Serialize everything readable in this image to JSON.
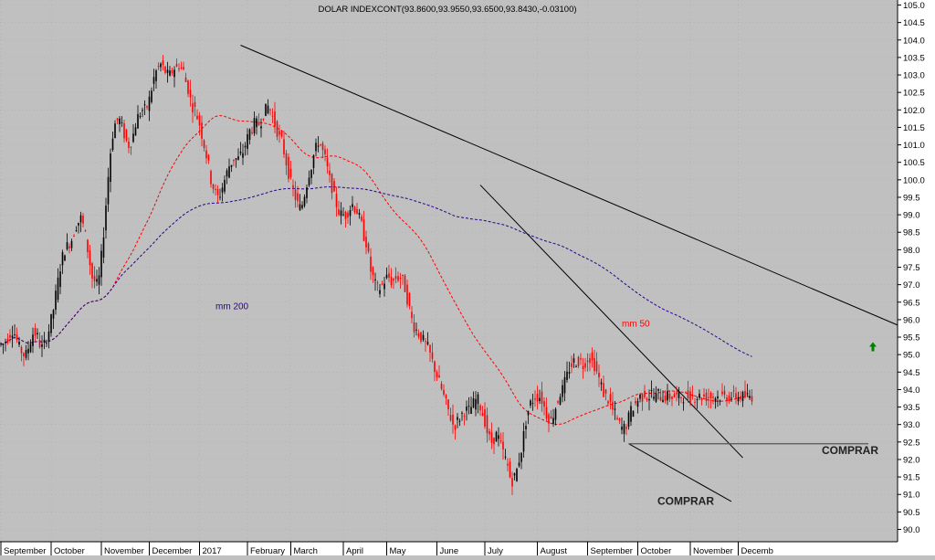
{
  "chart_data": {
    "type": "candlestick",
    "title": "DOLAR INDEXCONT(93.8600,93.9550,93.6500,93.8430,-0.03100)",
    "ylim": [
      89.8,
      105.3
    ],
    "y_ticks": [
      90.0,
      90.5,
      91.0,
      91.5,
      92.0,
      92.5,
      93.0,
      93.5,
      94.0,
      94.5,
      95.0,
      95.5,
      96.0,
      96.5,
      97.0,
      97.5,
      98.0,
      98.5,
      99.0,
      99.5,
      100.0,
      100.5,
      101.0,
      101.5,
      102.0,
      102.5,
      103.0,
      103.5,
      104.0,
      104.5,
      105.0
    ],
    "x_labels": [
      "September",
      "October",
      "November",
      "December",
      "2017",
      "February",
      "March",
      "April",
      "May",
      "June",
      "July",
      "August",
      "September",
      "October",
      "November",
      "Decemb"
    ],
    "month_index": [
      0,
      22,
      44,
      65,
      87,
      108,
      127,
      150,
      169,
      191,
      212,
      235,
      257,
      279,
      302,
      323
    ],
    "close": [
      95.3,
      95.3,
      95.4,
      95.5,
      95.6,
      95.7,
      95.6,
      95.4,
      95.2,
      95.1,
      95.0,
      95.0,
      95.2,
      95.4,
      95.6,
      95.6,
      95.5,
      95.3,
      95.2,
      95.3,
      95.5,
      95.7,
      96.0,
      96.3,
      96.7,
      97.1,
      97.5,
      97.8,
      98.0,
      98.1,
      98.2,
      98.3,
      98.5,
      98.7,
      98.8,
      98.9,
      98.7,
      98.4,
      98.0,
      97.6,
      97.2,
      97.1,
      97.0,
      97.2,
      97.8,
      98.5,
      99.3,
      100.1,
      100.8,
      101.3,
      101.6,
      101.7,
      101.7,
      101.5,
      101.3,
      101.1,
      101.0,
      101.1,
      101.3,
      101.6,
      101.8,
      101.9,
      102.0,
      102.0,
      102.1,
      102.3,
      102.6,
      102.9,
      103.1,
      103.2,
      103.3,
      103.2,
      103.1,
      103.0,
      103.0,
      103.1,
      103.2,
      103.2,
      103.3,
      103.2,
      103.1,
      102.8,
      102.6,
      102.3,
      102.1,
      102.0,
      101.8,
      101.6,
      101.3,
      101.0,
      100.7,
      100.4,
      100.0,
      99.8,
      99.6,
      99.5,
      99.6,
      99.8,
      100.0,
      100.2,
      100.4,
      100.5,
      100.6,
      100.6,
      100.6,
      100.7,
      100.8,
      101.0,
      101.2,
      101.4,
      101.5,
      101.6,
      101.6,
      101.6,
      101.7,
      101.9,
      102.0,
      102.1,
      102.0,
      101.8,
      101.6,
      101.4,
      101.2,
      101.1,
      100.8,
      100.5,
      100.2,
      99.9,
      99.7,
      99.5,
      99.3,
      99.2,
      99.3,
      99.6,
      99.9,
      100.2,
      100.4,
      100.7,
      100.9,
      101.1,
      101.0,
      100.8,
      100.6,
      100.3,
      100.0,
      99.8,
      99.5,
      99.3,
      99.1,
      99.0,
      99.0,
      99.0,
      99.1,
      99.2,
      99.3,
      99.2,
      99.1,
      98.9,
      98.7,
      98.4,
      98.2,
      97.8,
      97.4,
      97.2,
      97.0,
      96.9,
      96.9,
      97.0,
      97.1,
      97.2,
      97.2,
      97.1,
      97.1,
      97.2,
      97.2,
      97.2,
      97.1,
      96.9,
      96.6,
      96.3,
      96.0,
      95.8,
      95.7,
      95.6,
      95.5,
      95.4,
      95.3,
      95.2,
      95.0,
      94.8,
      94.6,
      94.4,
      94.2,
      94.0,
      93.8,
      93.6,
      93.4,
      93.2,
      93.0,
      93.0,
      93.1,
      93.2,
      93.3,
      93.4,
      93.4,
      93.4,
      93.5,
      93.6,
      93.7,
      93.7,
      93.5,
      93.3,
      93.1,
      92.8,
      92.6,
      92.5,
      92.6,
      92.7,
      92.6,
      92.4,
      92.2,
      92.0,
      91.8,
      91.5,
      91.4,
      91.5,
      91.7,
      92.0,
      92.3,
      92.7,
      93.1,
      93.4,
      93.6,
      93.7,
      93.8,
      93.8,
      93.8,
      93.7,
      93.5,
      93.3,
      93.2,
      93.1,
      93.3,
      93.5,
      93.7,
      93.9,
      94.0,
      94.2,
      94.4,
      94.6,
      94.7,
      94.8,
      94.8,
      94.8,
      94.8,
      94.7,
      94.8,
      94.9,
      94.9,
      94.8,
      94.7,
      94.5,
      94.3,
      94.1,
      93.9,
      93.8,
      93.7,
      93.6,
      93.4,
      93.3,
      93.1,
      93.0,
      92.9,
      92.9,
      93.0,
      93.2,
      93.4,
      93.5,
      93.6,
      93.7,
      93.8,
      93.8,
      93.9,
      93.8,
      93.8,
      93.9,
      93.8,
      93.8,
      93.9,
      93.8,
      93.8,
      93.8,
      93.8,
      93.8,
      93.8,
      93.8,
      93.8,
      93.8,
      93.8,
      93.8,
      93.8,
      93.8,
      93.8,
      93.8,
      93.8,
      93.8,
      93.8,
      93.8,
      93.8,
      93.8,
      93.8,
      93.8,
      93.8,
      93.8,
      93.8,
      93.8,
      93.8,
      93.8,
      93.8,
      93.8,
      93.8,
      93.8,
      93.8,
      93.8,
      93.8,
      93.8,
      93.8,
      93.8,
      93.8,
      93.8
    ],
    "series": [
      {
        "name": "mm 50",
        "color": "#ff0000",
        "style": "dashed",
        "label_index": 272,
        "label_y": 95.8
      },
      {
        "name": "mm 200",
        "color": "#2a008c",
        "style": "dashed",
        "label_index": 94,
        "label_y": 96.3
      }
    ],
    "trendlines": [
      {
        "from": [
          105,
          103.85
        ],
        "to": [
          398,
          95.7
        ],
        "color": "#000000"
      },
      {
        "from": [
          210,
          99.85
        ],
        "to": [
          325,
          92.05
        ],
        "color": "#000000"
      },
      {
        "from": [
          275,
          92.45
        ],
        "to": [
          320,
          90.8
        ],
        "color": "#000000"
      }
    ],
    "support": {
      "y": 92.45,
      "from": 275,
      "to": 380,
      "color": "#555555"
    },
    "annotations": [
      {
        "text": "COMPRAR",
        "index": 300,
        "y": 90.7
      },
      {
        "text": "COMPRAR",
        "index": 372,
        "y": 92.15
      }
    ],
    "signal": {
      "icon": "up-arrow-icon",
      "color": "#008000",
      "index": 382,
      "y": 95.2
    },
    "colors": {
      "up": "#000000",
      "down": "#ff0000",
      "background": "#c0c0c0",
      "grid": "#a8a8a8",
      "axis_bg": "#ffffff"
    }
  }
}
